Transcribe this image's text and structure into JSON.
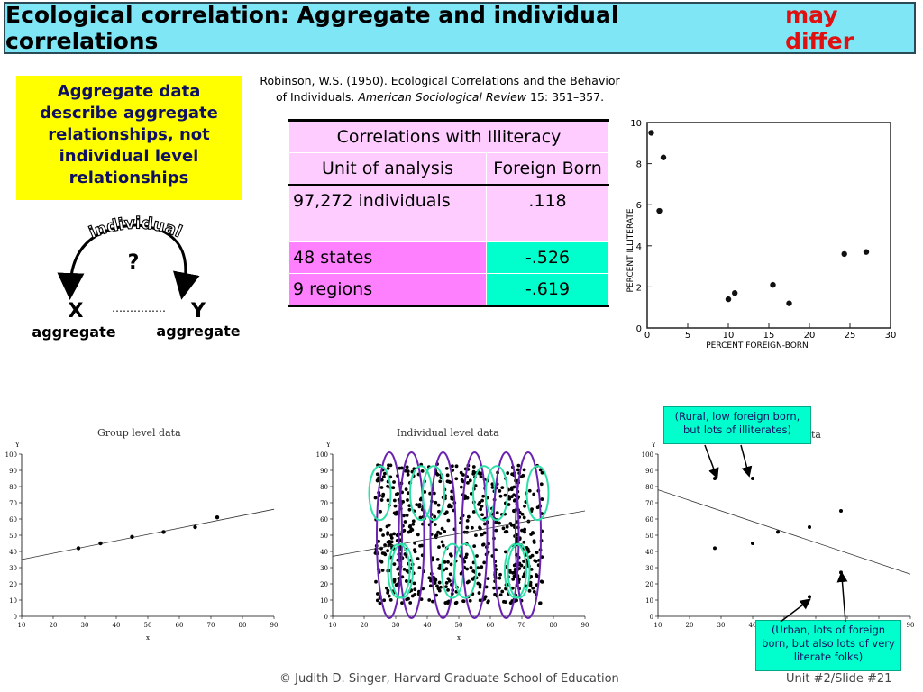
{
  "title": {
    "main": "Ecological correlation: Aggregate and individual correlations",
    "highlight": "may differ"
  },
  "note": "Aggregate data describe aggregate relationships, not individual level relationships",
  "diagram": {
    "arc_label": "individual",
    "question": "?",
    "x": "X",
    "y": "Y",
    "dots": "……………",
    "x_sub": "aggregate",
    "y_sub": "aggregate"
  },
  "citation": {
    "line1": "Robinson, W.S. (1950). Ecological Correlations and the Behavior",
    "line2_pre": "of Individuals.",
    "journal": "American Sociological Review",
    "line2_post": "15: 351–357."
  },
  "table": {
    "header": "Correlations with Illiteracy",
    "col1": "Unit of analysis",
    "col2": "Foreign Born",
    "rows": [
      {
        "unit": "97,272 individuals",
        "value": ".118"
      },
      {
        "unit": "48 states",
        "value": "-.526"
      },
      {
        "unit": "9 regions",
        "value": "-.619"
      }
    ]
  },
  "scan_plot": {
    "ylabel": "PERCENT ILLITERATE",
    "xlabel": "PERCENT FOREIGN-BORN",
    "xticks": [
      "0",
      "5",
      "10",
      "15",
      "20",
      "25",
      "30"
    ],
    "yticks": [
      "0",
      "2",
      "4",
      "6",
      "8",
      "10"
    ]
  },
  "plots": {
    "group_title": "Group level data",
    "individual_title": "Individual level data",
    "third_title_visible": "ta",
    "y_axis_letter": "Y",
    "x_axis_letter": "x",
    "yticks": [
      "0",
      "10",
      "20",
      "30",
      "40",
      "50",
      "60",
      "70",
      "80",
      "90",
      "100"
    ],
    "xticks": [
      "10",
      "20",
      "30",
      "40",
      "50",
      "60",
      "70",
      "80",
      "90"
    ]
  },
  "callouts": {
    "top": "(Rural, low foreign born, but lots of illiterates)",
    "bottom": "(Urban, lots of foreign born, but also lots of very literate folks)"
  },
  "footer": {
    "credit": "© Judith D. Singer, Harvard Graduate School of Education",
    "slide": "Unit #2/Slide #21"
  },
  "chart_data": [
    {
      "type": "scatter",
      "xlabel": "PERCENT FOREIGN-BORN",
      "ylabel": "PERCENT ILLITERATE",
      "xlim": [
        0,
        30
      ],
      "ylim": [
        0,
        10
      ],
      "points": [
        [
          0.5,
          9.5
        ],
        [
          1.5,
          5.7
        ],
        [
          2,
          8.3
        ],
        [
          10,
          1.4
        ],
        [
          10.8,
          1.7
        ],
        [
          15.5,
          2.1
        ],
        [
          17.5,
          1.2
        ],
        [
          24.3,
          3.6
        ],
        [
          27,
          3.7
        ]
      ]
    },
    {
      "type": "scatter",
      "title": "Group level data",
      "xlim": [
        10,
        90
      ],
      "ylim": [
        0,
        100
      ],
      "points": [
        [
          28,
          42
        ],
        [
          35,
          45
        ],
        [
          45,
          49
        ],
        [
          55,
          52
        ],
        [
          65,
          55
        ],
        [
          72,
          61
        ]
      ],
      "fit_line": [
        [
          10,
          35
        ],
        [
          90,
          66
        ]
      ]
    },
    {
      "type": "scatter",
      "title": "Individual level data",
      "xlim": [
        10,
        90
      ],
      "ylim": [
        0,
        100
      ],
      "group_centers": [
        28,
        35,
        45,
        55,
        65,
        72
      ],
      "fit_line": [
        [
          10,
          37
        ],
        [
          90,
          65
        ]
      ]
    },
    {
      "type": "scatter",
      "xlim": [
        10,
        90
      ],
      "ylim": [
        0,
        100
      ],
      "points": [
        [
          28,
          85
        ],
        [
          28,
          42
        ],
        [
          40,
          85
        ],
        [
          40,
          45
        ],
        [
          48,
          52
        ],
        [
          58,
          55
        ],
        [
          58,
          12
        ],
        [
          68,
          65
        ],
        [
          68,
          27
        ]
      ],
      "fit_line": [
        [
          10,
          78
        ],
        [
          90,
          26
        ]
      ]
    }
  ]
}
